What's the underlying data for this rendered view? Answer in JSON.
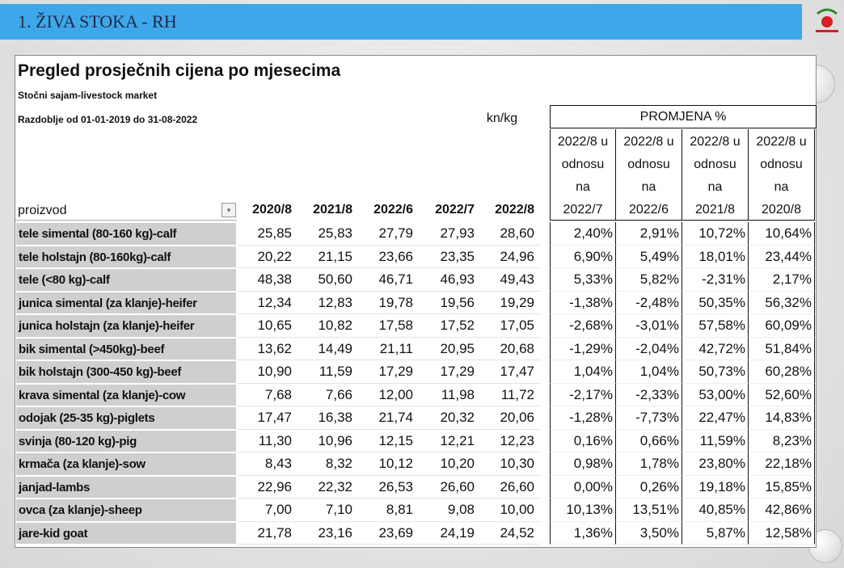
{
  "header": {
    "title": "1. ŽIVA STOKA - RH"
  },
  "table": {
    "title": "Pregled prosječnih cijena po  mjesecima",
    "subtitle": "Stočni sajam-livestock market",
    "period": "Razdoblje od 01-01-2019 do 31-08-2022",
    "unit": "kn/kg",
    "change_header": "PROMJENA %",
    "row_header": "proizvod",
    "price_columns": [
      "2020/8",
      "2021/8",
      "2022/6",
      "2022/7",
      "2022/8"
    ],
    "change_columns": [
      "2022/8 u odnosu na 2022/7",
      "2022/8 u odnosu na 2022/6",
      "2022/8 u odnosu na 2021/8",
      "2022/8 u odnosu na 2020/8"
    ],
    "rows": [
      {
        "label": "tele simental (80-160 kg)-calf",
        "prices": [
          "25,85",
          "25,83",
          "27,79",
          "27,93",
          "28,60"
        ],
        "changes": [
          "2,40%",
          "2,91%",
          "10,72%",
          "10,64%"
        ]
      },
      {
        "label": "tele holstajn (80-160kg)-calf",
        "prices": [
          "20,22",
          "21,15",
          "23,66",
          "23,35",
          "24,96"
        ],
        "changes": [
          "6,90%",
          "5,49%",
          "18,01%",
          "23,44%"
        ]
      },
      {
        "label": "tele (<80 kg)-calf",
        "prices": [
          "48,38",
          "50,60",
          "46,71",
          "46,93",
          "49,43"
        ],
        "changes": [
          "5,33%",
          "5,82%",
          "-2,31%",
          "2,17%"
        ]
      },
      {
        "label": "junica simental (za klanje)-heifer",
        "prices": [
          "12,34",
          "12,83",
          "19,78",
          "19,56",
          "19,29"
        ],
        "changes": [
          "-1,38%",
          "-2,48%",
          "50,35%",
          "56,32%"
        ]
      },
      {
        "label": "junica holstajn (za klanje)-heifer",
        "prices": [
          "10,65",
          "10,82",
          "17,58",
          "17,52",
          "17,05"
        ],
        "changes": [
          "-2,68%",
          "-3,01%",
          "57,58%",
          "60,09%"
        ]
      },
      {
        "label": "bik simental (>450kg)-beef",
        "prices": [
          "13,62",
          "14,49",
          "21,11",
          "20,95",
          "20,68"
        ],
        "changes": [
          "-1,29%",
          "-2,04%",
          "42,72%",
          "51,84%"
        ]
      },
      {
        "label": "bik holstajn (300-450 kg)-beef",
        "prices": [
          "10,90",
          "11,59",
          "17,29",
          "17,29",
          "17,47"
        ],
        "changes": [
          "1,04%",
          "1,04%",
          "50,73%",
          "60,28%"
        ]
      },
      {
        "label": "krava simental (za klanje)-cow",
        "prices": [
          "7,68",
          "7,66",
          "12,00",
          "11,98",
          "11,72"
        ],
        "changes": [
          "-2,17%",
          "-2,33%",
          "53,00%",
          "52,60%"
        ]
      },
      {
        "label": "odojak (25-35 kg)-piglets",
        "prices": [
          "17,47",
          "16,38",
          "21,74",
          "20,32",
          "20,06"
        ],
        "changes": [
          "-1,28%",
          "-7,73%",
          "22,47%",
          "14,83%"
        ]
      },
      {
        "label": "svinja (80-120 kg)-pig",
        "prices": [
          "11,30",
          "10,96",
          "12,15",
          "12,21",
          "12,23"
        ],
        "changes": [
          "0,16%",
          "0,66%",
          "11,59%",
          "8,23%"
        ]
      },
      {
        "label": "krmača (za klanje)-sow",
        "prices": [
          "8,43",
          "8,32",
          "10,12",
          "10,20",
          "10,30"
        ],
        "changes": [
          "0,98%",
          "1,78%",
          "23,80%",
          "22,18%"
        ]
      },
      {
        "label": "janjad-lambs",
        "prices": [
          "22,96",
          "22,32",
          "26,53",
          "26,60",
          "26,60"
        ],
        "changes": [
          "0,00%",
          "0,26%",
          "19,18%",
          "15,85%"
        ]
      },
      {
        "label": "ovca (za klanje)-sheep",
        "prices": [
          "7,00",
          "7,10",
          "8,81",
          "9,08",
          "10,00"
        ],
        "changes": [
          "10,13%",
          "13,51%",
          "40,85%",
          "42,86%"
        ]
      },
      {
        "label": "jare-kid goat",
        "prices": [
          "21,78",
          "23,16",
          "23,69",
          "24,19",
          "24,52"
        ],
        "changes": [
          "1,36%",
          "3,50%",
          "5,87%",
          "12,58%"
        ]
      }
    ]
  }
}
